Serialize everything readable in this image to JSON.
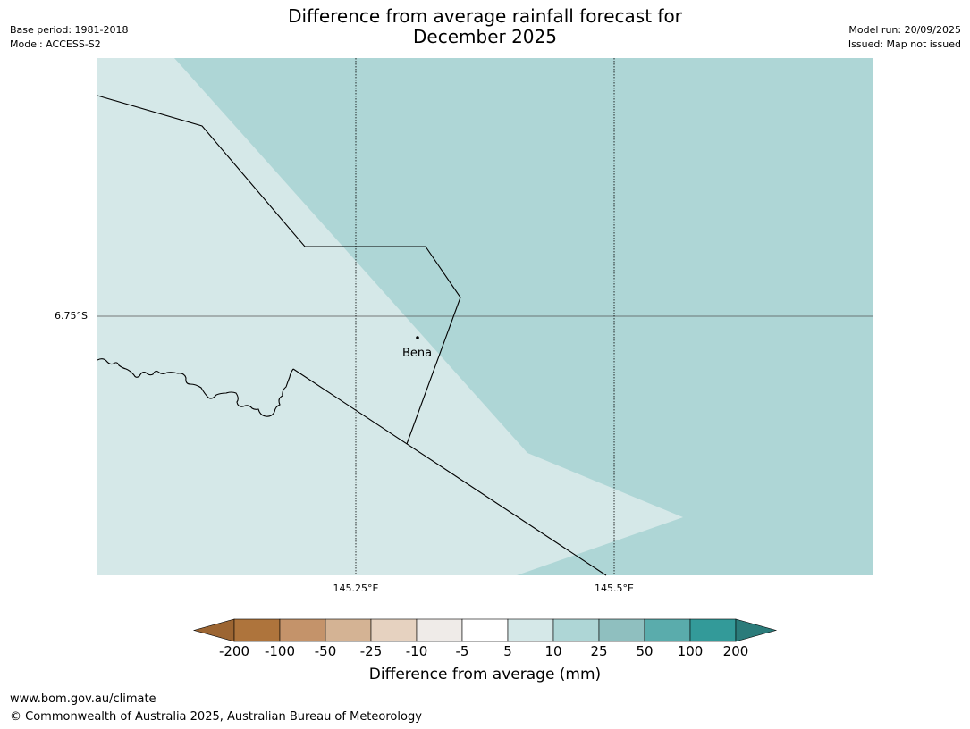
{
  "header": {
    "base_period": "Base period: 1981-2018",
    "model": "Model: ACCESS-S2",
    "title_line1": "Difference from average rainfall forecast for",
    "title_line2": "December 2025",
    "model_run": "Model run: 20/09/2025",
    "issued": "Issued: Map not issued"
  },
  "map": {
    "x_ticks": [
      "145.25°E",
      "145.5°E"
    ],
    "y_ticks": [
      "6.75°S"
    ],
    "place": "Bena",
    "colors": {
      "region_5_10": "#d5e8e8",
      "region_10_25": "#aed6d6"
    }
  },
  "colorbar": {
    "title": "Difference from average (mm)",
    "labels": [
      "-200",
      "-100",
      "-50",
      "-25",
      "-10",
      "-5",
      "5",
      "10",
      "25",
      "50",
      "100",
      "200"
    ],
    "colors": [
      "#9c6532",
      "#ae743c",
      "#c4936a",
      "#d4b394",
      "#e6d2c0",
      "#efebe8",
      "#ffffff",
      "#d5e8e8",
      "#aed6d6",
      "#8fbfbf",
      "#5aacac",
      "#339a99",
      "#2b7b7a"
    ]
  },
  "footer": {
    "url": "www.bom.gov.au/climate",
    "copyright": "© Commonwealth of Australia 2025, Australian Bureau of Meteorology"
  }
}
